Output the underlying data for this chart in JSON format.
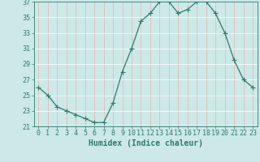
{
  "x": [
    0,
    1,
    2,
    3,
    4,
    5,
    6,
    7,
    8,
    9,
    10,
    11,
    12,
    13,
    14,
    15,
    16,
    17,
    18,
    19,
    20,
    21,
    22,
    23
  ],
  "y": [
    26,
    25,
    23.5,
    23,
    22.5,
    22,
    21.5,
    21.5,
    24,
    28,
    31,
    34.5,
    35.5,
    37,
    37,
    35.5,
    36,
    37,
    37,
    35.5,
    33,
    29.5,
    27,
    26
  ],
  "xlabel": "Humidex (Indice chaleur)",
  "ylim": [
    21,
    37
  ],
  "xlim": [
    -0.5,
    23.5
  ],
  "yticks": [
    21,
    23,
    25,
    27,
    29,
    31,
    33,
    35,
    37
  ],
  "xticks": [
    0,
    1,
    2,
    3,
    4,
    5,
    6,
    7,
    8,
    9,
    10,
    11,
    12,
    13,
    14,
    15,
    16,
    17,
    18,
    19,
    20,
    21,
    22,
    23
  ],
  "line_color": "#2d7a6e",
  "marker_size": 2.5,
  "bg_color": "#cce9e7",
  "grid_color_v": "#e8b0b0",
  "grid_color_h": "#ffffff",
  "axis_color": "#2d7a6e",
  "tick_color": "#2d7a6e",
  "label_color": "#2d7a6e",
  "xlabel_fontsize": 7,
  "tick_fontsize": 6
}
